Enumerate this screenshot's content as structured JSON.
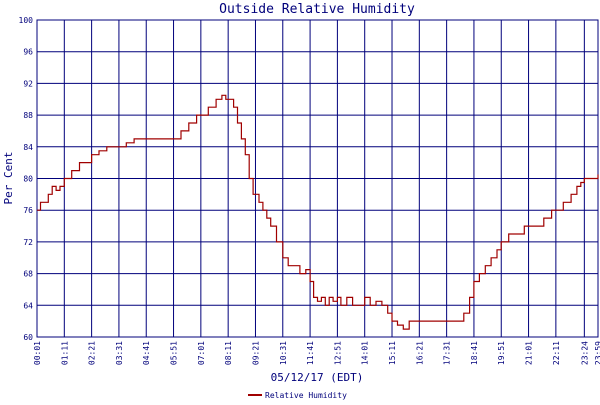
{
  "chart_data": {
    "type": "line",
    "title": "Outside Relative Humidity",
    "xlabel": "05/12/17 (EDT)",
    "ylabel": "Per Cent",
    "ylim": [
      60,
      100
    ],
    "yticks": [
      60,
      64,
      68,
      72,
      76,
      80,
      84,
      88,
      92,
      96,
      100
    ],
    "xticks": [
      "00:01",
      "01:11",
      "02:21",
      "03:31",
      "04:41",
      "05:51",
      "07:01",
      "08:11",
      "09:21",
      "10:31",
      "11:41",
      "12:51",
      "14:01",
      "15:11",
      "16:21",
      "17:31",
      "18:41",
      "19:51",
      "21:01",
      "22:11",
      "23:24",
      "23:59"
    ],
    "grid": true,
    "legend": "bottom-center",
    "colors": {
      "series": "#a00000",
      "grid": "#00007b",
      "text": "#00007b"
    },
    "series": [
      {
        "name": "Relative Humidity",
        "x": [
          "00:01",
          "00:10",
          "00:20",
          "00:30",
          "00:40",
          "00:50",
          "01:00",
          "01:11",
          "01:30",
          "01:50",
          "02:10",
          "02:21",
          "02:40",
          "03:00",
          "03:20",
          "03:31",
          "03:50",
          "04:10",
          "04:30",
          "04:41",
          "05:00",
          "05:20",
          "05:40",
          "05:51",
          "06:10",
          "06:30",
          "06:50",
          "07:01",
          "07:20",
          "07:40",
          "07:55",
          "08:05",
          "08:11",
          "08:25",
          "08:35",
          "08:45",
          "08:55",
          "09:05",
          "09:15",
          "09:21",
          "09:30",
          "09:40",
          "09:50",
          "10:00",
          "10:15",
          "10:31",
          "10:45",
          "11:00",
          "11:15",
          "11:30",
          "11:41",
          "11:50",
          "12:00",
          "12:10",
          "12:20",
          "12:30",
          "12:40",
          "12:51",
          "13:00",
          "13:15",
          "13:30",
          "13:45",
          "14:01",
          "14:15",
          "14:30",
          "14:45",
          "15:00",
          "15:11",
          "15:25",
          "15:40",
          "15:55",
          "16:10",
          "16:21",
          "16:40",
          "17:00",
          "17:20",
          "17:31",
          "17:45",
          "18:00",
          "18:15",
          "18:30",
          "18:41",
          "18:55",
          "19:10",
          "19:25",
          "19:40",
          "19:51",
          "20:10",
          "20:30",
          "20:50",
          "21:01",
          "21:20",
          "21:40",
          "22:00",
          "22:11",
          "22:30",
          "22:50",
          "23:05",
          "23:15",
          "23:24",
          "23:35",
          "23:45",
          "23:59"
        ],
        "values": [
          76,
          77,
          77,
          78,
          79,
          78.5,
          79,
          80,
          81,
          82,
          82,
          83,
          83.5,
          84,
          84,
          84,
          84.5,
          85,
          85,
          85,
          85,
          85,
          85,
          85,
          86,
          87,
          88,
          88,
          89,
          90,
          90.5,
          90,
          90,
          89,
          87,
          85,
          83,
          80,
          78,
          78,
          77,
          76,
          75,
          74,
          72,
          70,
          69,
          69,
          68,
          68.5,
          67,
          65,
          64.5,
          65,
          64,
          65,
          64.5,
          65,
          64,
          65,
          64,
          64,
          65,
          64,
          64.5,
          64,
          63,
          62,
          61.5,
          61,
          62,
          62,
          62,
          62,
          62,
          62,
          62,
          62,
          62,
          63,
          65,
          67,
          68,
          69,
          70,
          71,
          72,
          73,
          73,
          74,
          74,
          74,
          75,
          76,
          76,
          77,
          78,
          79,
          79.5,
          80,
          80,
          80,
          80.5
        ]
      }
    ]
  }
}
